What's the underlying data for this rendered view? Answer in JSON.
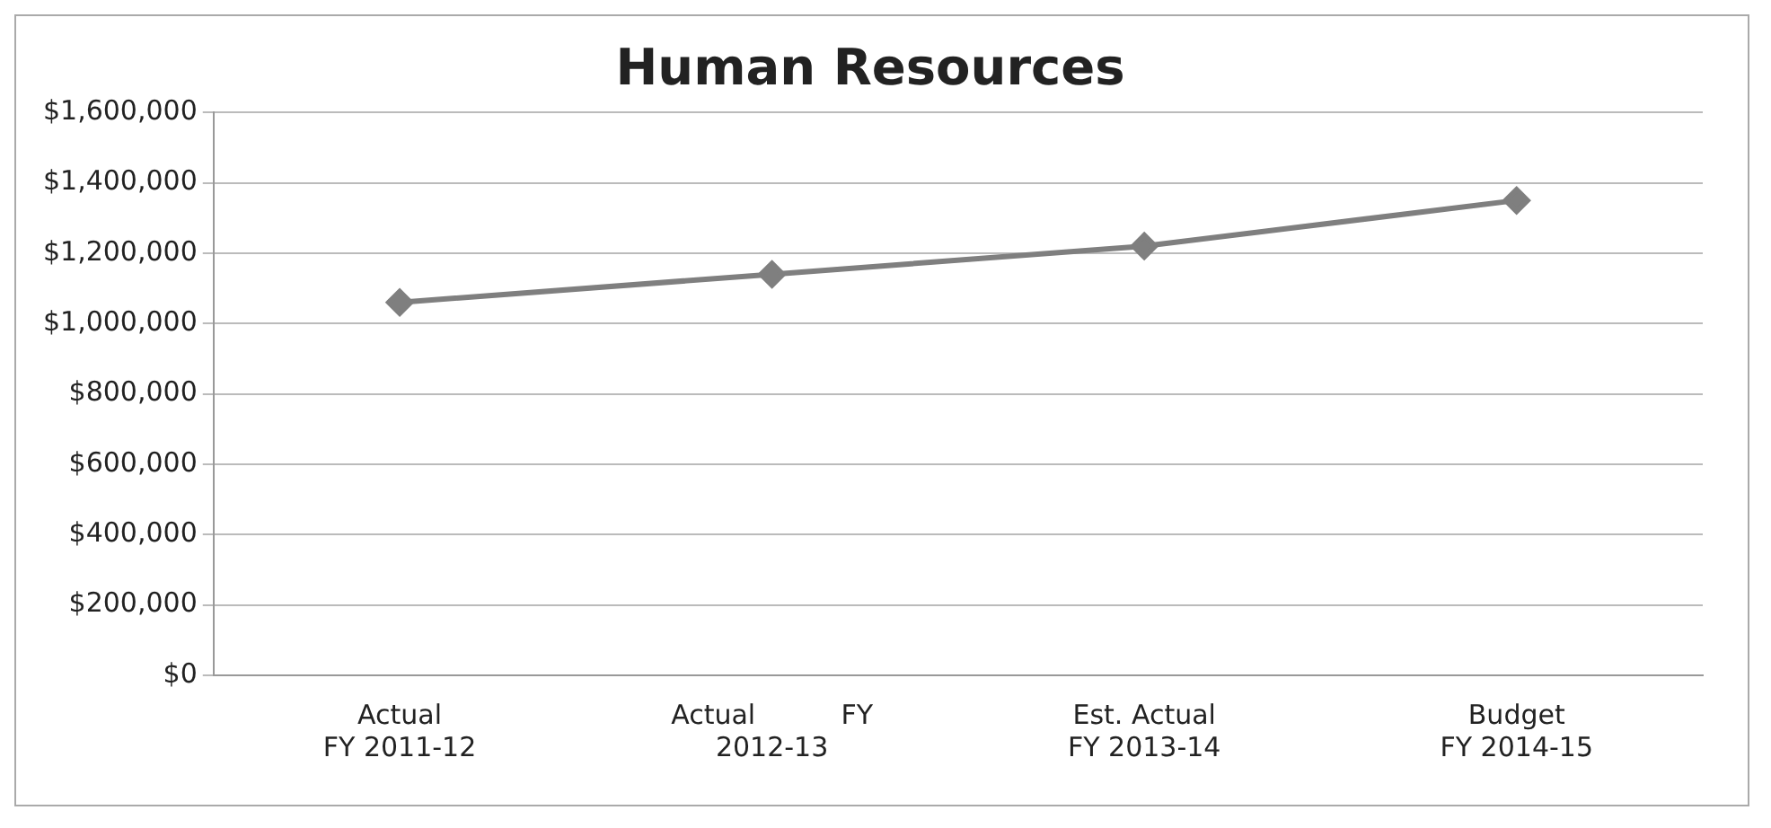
{
  "chart_data": {
    "type": "line",
    "title": "Human Resources",
    "categories": [
      "Actual\nFY 2011-12",
      "Actual          FY\n2012-13",
      "Est. Actual\nFY 2013-14",
      "Budget\nFY 2014-15"
    ],
    "series": [
      {
        "color": "#7f7f7f",
        "values": [
          1060000,
          1140000,
          1220000,
          1350000
        ]
      }
    ],
    "ylim": [
      0,
      1600000
    ],
    "yticks": [
      {
        "value": 0,
        "label": "$0"
      },
      {
        "value": 200000,
        "label": "$200,000"
      },
      {
        "value": 400000,
        "label": "$400,000"
      },
      {
        "value": 600000,
        "label": "$600,000"
      },
      {
        "value": 800000,
        "label": "$800,000"
      },
      {
        "value": 1000000,
        "label": "$1,000,000"
      },
      {
        "value": 1200000,
        "label": "$1,200,000"
      },
      {
        "value": 1400000,
        "label": "$1,400,000"
      },
      {
        "value": 1600000,
        "label": "$1,600,000"
      }
    ],
    "grid": "y",
    "marker": "diamond",
    "line_style": "solid"
  }
}
